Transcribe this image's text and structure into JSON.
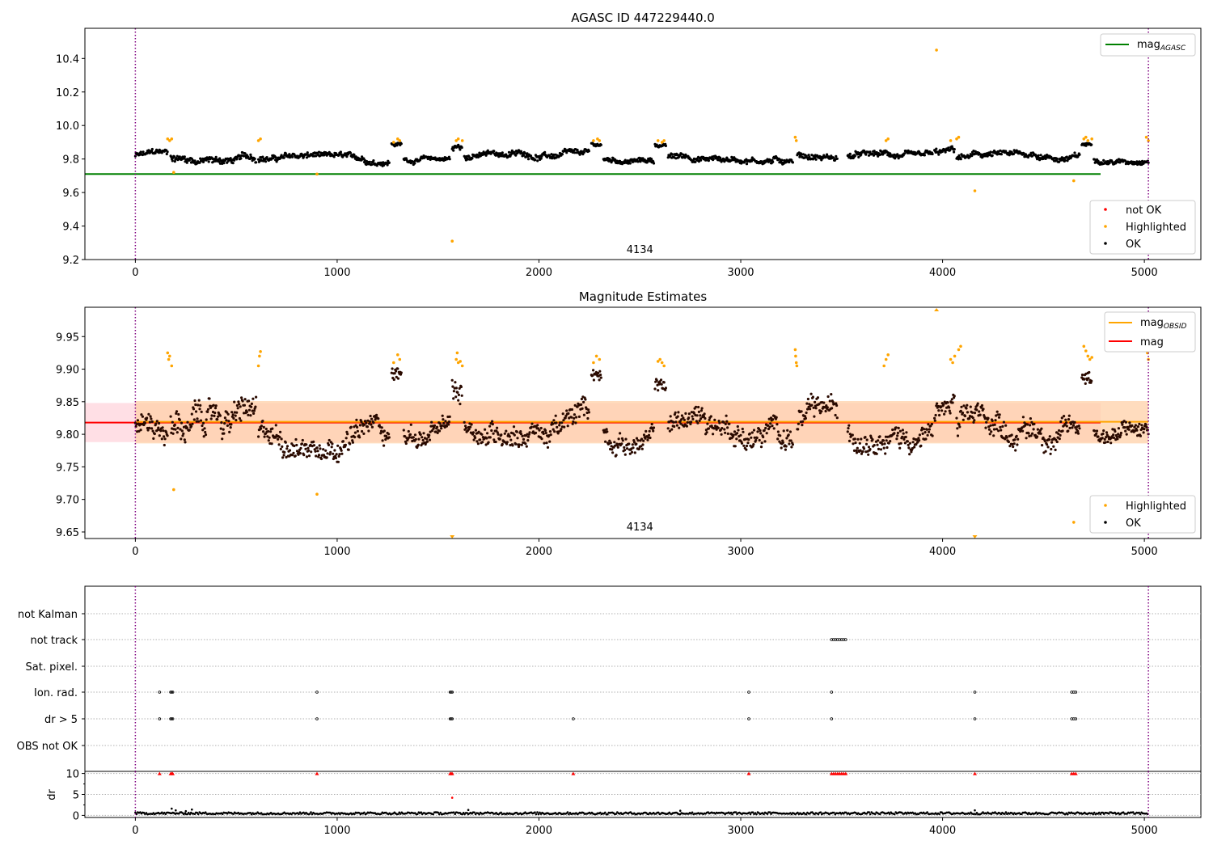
{
  "chart_data": [
    {
      "type": "scatter",
      "title": "AGASC ID 447229440.0",
      "xlim": [
        -250,
        5280
      ],
      "ylim": [
        9.2,
        10.58
      ],
      "x_ticks": [
        0,
        1000,
        2000,
        3000,
        4000,
        5000
      ],
      "y_ticks": [
        9.2,
        9.4,
        9.6,
        9.8,
        10.0,
        10.2,
        10.4
      ],
      "y_tick_labels": [
        "9.2",
        "9.4",
        "9.6",
        "9.8",
        "10.0",
        "10.2",
        "10.4"
      ],
      "annotation": {
        "text": "4134",
        "x": 2500,
        "y": 9.23
      },
      "obsid_bounds": [
        0,
        5020
      ],
      "reference_lines": [
        {
          "name": "mag_AGASC",
          "label": "mag",
          "label_sub": "AGASC",
          "value": 9.71,
          "x_range": [
            -250,
            5280
          ],
          "color": "#008000"
        }
      ],
      "legend_top": [
        {
          "label": "mag",
          "sub": "AGASC",
          "color": "#008000"
        }
      ],
      "legend_bottom": [
        {
          "label": "not OK",
          "color": "#ff0000"
        },
        {
          "label": "Highlighted",
          "color": "#ffa500"
        },
        {
          "label": "OK",
          "color": "#000000"
        }
      ],
      "ok_series": {
        "name": "OK",
        "segments": [
          {
            "x": [
              0,
              160
            ],
            "mean": 9.82,
            "spread": 0.05
          },
          {
            "x": [
              175,
              600
            ],
            "mean": 9.81,
            "spread": 0.06
          },
          {
            "x": [
              610,
              1260
            ],
            "mean": 9.8,
            "spread": 0.05
          },
          {
            "x": [
              1270,
              1320
            ],
            "mean": 9.89,
            "spread": 0.03
          },
          {
            "x": [
              1330,
              1560
            ],
            "mean": 9.8,
            "spread": 0.04
          },
          {
            "x": [
              1570,
              1620
            ],
            "mean": 9.87,
            "spread": 0.06
          },
          {
            "x": [
              1630,
              2250
            ],
            "mean": 9.82,
            "spread": 0.05
          },
          {
            "x": [
              2260,
              2310
            ],
            "mean": 9.89,
            "spread": 0.03
          },
          {
            "x": [
              2320,
              2570
            ],
            "mean": 9.8,
            "spread": 0.04
          },
          {
            "x": [
              2575,
              2630
            ],
            "mean": 9.88,
            "spread": 0.03
          },
          {
            "x": [
              2640,
              3260
            ],
            "mean": 9.81,
            "spread": 0.05
          },
          {
            "x": [
              3280,
              3480
            ],
            "mean": 9.82,
            "spread": 0.05
          },
          {
            "x": [
              3530,
              3950
            ],
            "mean": 9.81,
            "spread": 0.05
          },
          {
            "x": [
              3960,
              4060
            ],
            "mean": 9.84,
            "spread": 0.05
          },
          {
            "x": [
              4070,
              4680
            ],
            "mean": 9.81,
            "spread": 0.05
          },
          {
            "x": [
              4690,
              4740
            ],
            "mean": 9.89,
            "spread": 0.03
          },
          {
            "x": [
              4750,
              5020
            ],
            "mean": 9.8,
            "spread": 0.04
          }
        ]
      },
      "highlighted_series": {
        "name": "Highlighted",
        "points": [
          [
            160,
            9.92
          ],
          [
            170,
            9.91
          ],
          [
            180,
            9.92
          ],
          [
            190,
            9.72
          ],
          [
            610,
            9.91
          ],
          [
            620,
            9.92
          ],
          [
            900,
            9.71
          ],
          [
            1280,
            9.9
          ],
          [
            1300,
            9.92
          ],
          [
            1310,
            9.91
          ],
          [
            1570,
            9.31
          ],
          [
            1590,
            9.91
          ],
          [
            1600,
            9.92
          ],
          [
            1620,
            9.91
          ],
          [
            2270,
            9.91
          ],
          [
            2290,
            9.92
          ],
          [
            2300,
            9.91
          ],
          [
            2590,
            9.91
          ],
          [
            2610,
            9.9
          ],
          [
            2620,
            9.91
          ],
          [
            3270,
            9.93
          ],
          [
            3275,
            9.91
          ],
          [
            3720,
            9.91
          ],
          [
            3730,
            9.92
          ],
          [
            3970,
            10.45
          ],
          [
            4040,
            9.91
          ],
          [
            4070,
            9.92
          ],
          [
            4080,
            9.93
          ],
          [
            4160,
            9.61
          ],
          [
            4650,
            9.67
          ],
          [
            4700,
            9.92
          ],
          [
            4710,
            9.93
          ],
          [
            4720,
            9.91
          ],
          [
            4740,
            9.92
          ],
          [
            5010,
            9.93
          ],
          [
            5020,
            9.91
          ]
        ]
      }
    },
    {
      "type": "scatter",
      "title": "Magnitude Estimates",
      "xlim": [
        -250,
        5280
      ],
      "ylim": [
        9.64,
        9.995
      ],
      "x_ticks": [
        0,
        1000,
        2000,
        3000,
        4000,
        5000
      ],
      "y_ticks": [
        9.65,
        9.7,
        9.75,
        9.8,
        9.85,
        9.9,
        9.95
      ],
      "y_tick_labels": [
        "9.65",
        "9.70",
        "9.75",
        "9.80",
        "9.85",
        "9.90",
        "9.95"
      ],
      "annotation": {
        "text": "4134",
        "x": 2500,
        "y": 9.655
      },
      "obsid_bounds": [
        0,
        5020
      ],
      "bands": [
        {
          "name": "mag band",
          "y": [
            9.788,
            9.848
          ],
          "x_range": [
            -250,
            5280
          ],
          "color": "#ffc0cb"
        },
        {
          "name": "mag_OBSID band",
          "y": [
            9.786,
            9.851
          ],
          "x_range": [
            0,
            5020
          ],
          "color": "#ffd0a8"
        }
      ],
      "reference_lines": [
        {
          "name": "mag_OBSID",
          "label": "mag",
          "label_sub": "OBSID",
          "value": 9.818,
          "x_range": [
            0,
            5020
          ],
          "color": "#ffa500"
        },
        {
          "name": "mag",
          "label": "mag",
          "value": 9.818,
          "x_range": [
            -250,
            5280
          ],
          "color": "#ff0000"
        }
      ],
      "legend_top": [
        {
          "label": "mag",
          "sub": "OBSID",
          "color": "#ffa500"
        },
        {
          "label": "mag",
          "color": "#ff0000"
        }
      ],
      "legend_bottom": [
        {
          "label": "Highlighted",
          "color": "#ffa500"
        },
        {
          "label": "OK",
          "color": "#000000"
        }
      ],
      "ok_series": {
        "name": "OK",
        "segments": [
          {
            "x": [
              0,
              160
            ],
            "mean": 9.82,
            "spread": 0.05
          },
          {
            "x": [
              175,
              600
            ],
            "mean": 9.81,
            "spread": 0.06
          },
          {
            "x": [
              610,
              1260
            ],
            "mean": 9.8,
            "spread": 0.05
          },
          {
            "x": [
              1270,
              1320
            ],
            "mean": 9.89,
            "spread": 0.03
          },
          {
            "x": [
              1330,
              1560
            ],
            "mean": 9.8,
            "spread": 0.04
          },
          {
            "x": [
              1570,
              1620
            ],
            "mean": 9.87,
            "spread": 0.06
          },
          {
            "x": [
              1630,
              2250
            ],
            "mean": 9.82,
            "spread": 0.05
          },
          {
            "x": [
              2260,
              2310
            ],
            "mean": 9.89,
            "spread": 0.03
          },
          {
            "x": [
              2320,
              2570
            ],
            "mean": 9.8,
            "spread": 0.04
          },
          {
            "x": [
              2575,
              2630
            ],
            "mean": 9.88,
            "spread": 0.03
          },
          {
            "x": [
              2640,
              3260
            ],
            "mean": 9.81,
            "spread": 0.05
          },
          {
            "x": [
              3280,
              3480
            ],
            "mean": 9.82,
            "spread": 0.05
          },
          {
            "x": [
              3530,
              3950
            ],
            "mean": 9.81,
            "spread": 0.05
          },
          {
            "x": [
              3960,
              4060
            ],
            "mean": 9.84,
            "spread": 0.05
          },
          {
            "x": [
              4070,
              4680
            ],
            "mean": 9.81,
            "spread": 0.05
          },
          {
            "x": [
              4690,
              4740
            ],
            "mean": 9.89,
            "spread": 0.03
          },
          {
            "x": [
              4750,
              5020
            ],
            "mean": 9.8,
            "spread": 0.04
          }
        ]
      },
      "highlighted_series": {
        "name": "Highlighted",
        "points": [
          [
            160,
            9.925
          ],
          [
            165,
            9.915
          ],
          [
            170,
            9.92
          ],
          [
            180,
            9.905
          ],
          [
            190,
            9.715
          ],
          [
            610,
            9.905
          ],
          [
            615,
            9.92
          ],
          [
            620,
            9.927
          ],
          [
            900,
            9.708
          ],
          [
            1280,
            9.91
          ],
          [
            1300,
            9.922
          ],
          [
            1310,
            9.915
          ],
          [
            1590,
            9.915
          ],
          [
            1595,
            9.925
          ],
          [
            1600,
            9.91
          ],
          [
            1610,
            9.912
          ],
          [
            1620,
            9.905
          ],
          [
            2270,
            9.91
          ],
          [
            2285,
            9.92
          ],
          [
            2300,
            9.915
          ],
          [
            2590,
            9.912
          ],
          [
            2600,
            9.915
          ],
          [
            2610,
            9.91
          ],
          [
            2620,
            9.905
          ],
          [
            3270,
            9.93
          ],
          [
            3272,
            9.92
          ],
          [
            3275,
            9.91
          ],
          [
            3278,
            9.905
          ],
          [
            3720,
            9.915
          ],
          [
            3730,
            9.922
          ],
          [
            3710,
            9.905
          ],
          [
            4040,
            9.915
          ],
          [
            4050,
            9.91
          ],
          [
            4060,
            9.92
          ],
          [
            4080,
            9.93
          ],
          [
            4090,
            9.935
          ],
          [
            4650,
            9.665
          ],
          [
            4700,
            9.935
          ],
          [
            4710,
            9.928
          ],
          [
            4720,
            9.92
          ],
          [
            4730,
            9.915
          ],
          [
            4740,
            9.918
          ],
          [
            5010,
            9.935
          ],
          [
            5015,
            9.925
          ],
          [
            5020,
            9.915
          ]
        ]
      },
      "clipped_markers": [
        [
          1570,
          "below"
        ],
        [
          4160,
          "below"
        ],
        [
          3970,
          "above"
        ]
      ]
    },
    {
      "type": "scatter",
      "title": "",
      "xlim": [
        -250,
        5280
      ],
      "x_ticks": [
        0,
        1000,
        2000,
        3000,
        4000,
        5000
      ],
      "obsid_bounds": [
        0,
        5020
      ],
      "flag_categories": [
        "not Kalman",
        "not track",
        "Sat. pixel.",
        "Ion. rad.",
        "dr > 5",
        "OBS not OK"
      ],
      "flags": {
        "not Kalman": [],
        "not track": [
          3450,
          3460,
          3470,
          3480,
          3490,
          3500,
          3510,
          3520
        ],
        "Sat. pixel.": [],
        "Ion. rad.": [
          120,
          175,
          180,
          185,
          900,
          1560,
          1565,
          1570,
          3040,
          3450,
          4160,
          4640,
          4650,
          4660
        ],
        "dr > 5": [
          120,
          175,
          180,
          185,
          900,
          1560,
          1565,
          1570,
          2170,
          3040,
          3450,
          4160,
          4640,
          4650,
          4660
        ],
        "OBS not OK": []
      }
    },
    {
      "type": "scatter",
      "title": "",
      "ylabel": "dr",
      "xlim": [
        -250,
        5280
      ],
      "ylim": [
        -0.5,
        10.5
      ],
      "x_ticks": [
        0,
        1000,
        2000,
        3000,
        4000,
        5000
      ],
      "y_ticks": [
        0,
        5,
        10
      ],
      "y_tick_labels": [
        "0",
        "5",
        "10"
      ],
      "obsid_bounds": [
        0,
        5020
      ],
      "dr_typical": 0.5,
      "dr_spikes": [
        [
          180,
          1.6
        ],
        [
          200,
          1.2
        ],
        [
          250,
          1.0
        ],
        [
          280,
          1.4
        ],
        [
          1570,
          4.2
        ],
        [
          1650,
          1.3
        ],
        [
          4160,
          1.2
        ],
        [
          2700,
          1.1
        ]
      ],
      "clipped_high": [
        120,
        175,
        180,
        185,
        900,
        1560,
        1565,
        1570,
        2170,
        3040,
        3450,
        3460,
        3470,
        3480,
        3490,
        3500,
        3510,
        3520,
        4160,
        4640,
        4650,
        4660
      ],
      "clip_value": 10
    }
  ]
}
